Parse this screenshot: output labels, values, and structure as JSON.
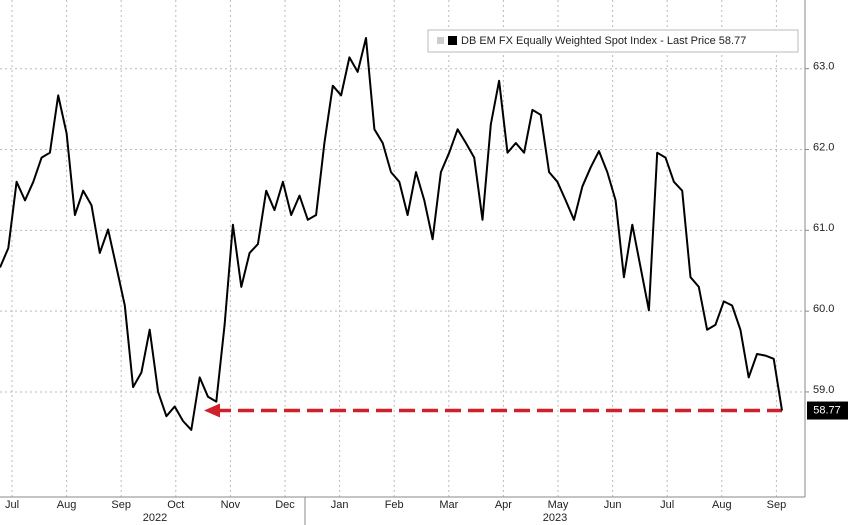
{
  "chart_data": {
    "type": "line",
    "series": [
      {
        "name": "DB EM FX Equally Weighted Spot Index - Last Price 58.77",
        "color": "#000000",
        "values": [
          60.54,
          60.78,
          61.6,
          61.37,
          61.6,
          61.9,
          61.96,
          62.67,
          62.2,
          61.19,
          61.49,
          61.31,
          60.72,
          61.01,
          60.54,
          60.07,
          59.06,
          59.24,
          59.77,
          59.0,
          58.7,
          58.82,
          58.64,
          58.53,
          59.18,
          58.94,
          58.88,
          59.83,
          61.07,
          60.3,
          60.72,
          60.83,
          61.49,
          61.25,
          61.6,
          61.19,
          61.43,
          61.13,
          61.19,
          62.08,
          62.79,
          62.67,
          63.14,
          62.96,
          63.38,
          62.25,
          62.08,
          61.72,
          61.6,
          61.19,
          61.72,
          61.37,
          60.89,
          61.72,
          61.96,
          62.25,
          62.08,
          61.9,
          61.13,
          62.31,
          62.85,
          61.96,
          62.08,
          61.96,
          62.49,
          62.43,
          61.72,
          61.6,
          61.37,
          61.13,
          61.54,
          61.78,
          61.98,
          61.72,
          61.37,
          60.42,
          61.07,
          60.54,
          60.01,
          61.96,
          61.9,
          61.6,
          61.49,
          60.42,
          60.3,
          59.77,
          59.83,
          60.12,
          60.07,
          59.77,
          59.18,
          59.47,
          59.45,
          59.41,
          58.77
        ]
      }
    ],
    "categories_axis": [
      "Jul",
      "Aug",
      "Sep",
      "Oct",
      "Nov",
      "Dec",
      "Jan",
      "Feb",
      "Mar",
      "Apr",
      "May",
      "Jun",
      "Jul",
      "Aug",
      "Sep"
    ],
    "years": [
      "2022",
      "2023"
    ],
    "ylim": [
      57.7,
      63.85
    ],
    "yticks": [
      {
        "value": 59,
        "label": "59.0"
      },
      {
        "value": 60,
        "label": "60.0"
      },
      {
        "value": 61,
        "label": "61.0"
      },
      {
        "value": 62,
        "label": "62.0"
      },
      {
        "value": 63,
        "label": "63.0"
      }
    ],
    "grid": true,
    "annotation_color": "#d0202a"
  }
}
